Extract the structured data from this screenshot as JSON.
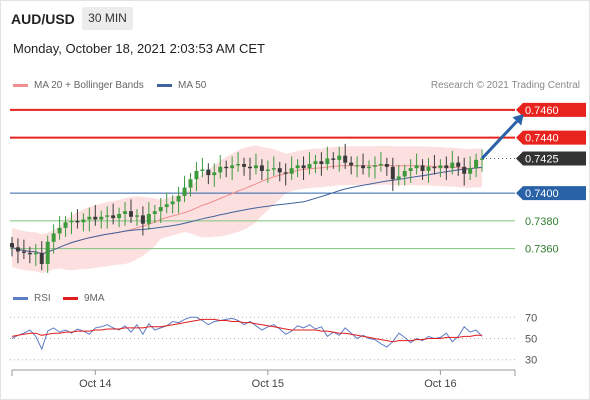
{
  "header": {
    "symbol": "AUD/USD",
    "timeframe": "30 MIN",
    "timestamp": "Monday, October 18, 2021 2:03:53 AM CET",
    "copyright": "Research © 2021 Trading Central"
  },
  "colors": {
    "resistance": "#e8231e",
    "support_strong": "#2a62a8",
    "support": "#7fc47f",
    "price_tag": "#333333",
    "bollinger_fill": "#fbdada",
    "ma20": "#f08d8d",
    "ma50": "#41629c",
    "candle": "#3a3a3a",
    "up_candle": "#3c9a3c",
    "rsi": "#5d7dc7",
    "rsi_ma": "#e11d1d",
    "arrow": "#2a62a8"
  },
  "chart_data": [
    {
      "type": "candlestick",
      "legend": [
        {
          "name": "MA 20 + Bollinger Bands",
          "color": "#f08d8d"
        },
        {
          "name": "MA 50",
          "color": "#41629c"
        }
      ],
      "ylim": [
        0.7336,
        0.747
      ],
      "x_ticks": [
        {
          "label": "Oct 14",
          "index": 14
        },
        {
          "label": "Oct 15",
          "index": 43
        },
        {
          "label": "Oct 16",
          "index": 72
        }
      ],
      "levels": [
        {
          "value": 0.746,
          "label": "0.7460",
          "kind": "resistance"
        },
        {
          "value": 0.744,
          "label": "0.7440",
          "kind": "resistance"
        },
        {
          "value": 0.7425,
          "label": "0.7425",
          "kind": "last_price"
        },
        {
          "value": 0.74,
          "label": "0.7400",
          "kind": "support_strong"
        },
        {
          "value": 0.738,
          "label": "0.7380",
          "kind": "support"
        },
        {
          "value": 0.736,
          "label": "0.7360",
          "kind": "support"
        }
      ],
      "target_arrow": {
        "from": {
          "index": 79,
          "value": 0.7425
        },
        "to": {
          "index": 86,
          "value": 0.7457
        }
      },
      "close_series": [
        0.7361,
        0.7358,
        0.7357,
        0.7356,
        0.7357,
        0.7349,
        0.7365,
        0.7371,
        0.7375,
        0.7379,
        0.738,
        0.7379,
        0.7381,
        0.7383,
        0.7381,
        0.7383,
        0.7384,
        0.7382,
        0.7385,
        0.7387,
        0.7383,
        0.7384,
        0.7378,
        0.7385,
        0.7387,
        0.739,
        0.7392,
        0.7394,
        0.7398,
        0.7404,
        0.741,
        0.7416,
        0.7417,
        0.7413,
        0.7415,
        0.7419,
        0.7418,
        0.742,
        0.7421,
        0.7419,
        0.7418,
        0.742,
        0.7416,
        0.7417,
        0.7418,
        0.7415,
        0.7414,
        0.7418,
        0.742,
        0.7418,
        0.7421,
        0.7423,
        0.7421,
        0.7425,
        0.7424,
        0.7427,
        0.7422,
        0.742,
        0.742,
        0.7418,
        0.7419,
        0.742,
        0.7421,
        0.7419,
        0.741,
        0.7412,
        0.7416,
        0.7418,
        0.742,
        0.7416,
        0.7419,
        0.7418,
        0.742,
        0.7418,
        0.7422,
        0.7419,
        0.7414,
        0.7418,
        0.7424,
        0.7425
      ]
    },
    {
      "type": "line",
      "legend": [
        {
          "name": "RSI",
          "color": "#5d7dc7"
        },
        {
          "name": "9MA",
          "color": "#e11d1d"
        }
      ],
      "ylim": [
        25,
        75
      ],
      "y_ticks": [
        70,
        50,
        30
      ],
      "series": [
        {
          "name": "RSI",
          "values": [
            50,
            53,
            55,
            58,
            52,
            40,
            57,
            60,
            56,
            58,
            55,
            59,
            57,
            54,
            60,
            61,
            63,
            60,
            58,
            62,
            56,
            63,
            54,
            64,
            58,
            60,
            62,
            66,
            65,
            68,
            70,
            70,
            67,
            63,
            66,
            67,
            68,
            69,
            67,
            63,
            66,
            62,
            58,
            61,
            63,
            59,
            54,
            57,
            62,
            60,
            63,
            59,
            61,
            52,
            56,
            53,
            60,
            55,
            50,
            53,
            50,
            49,
            45,
            42,
            47,
            55,
            51,
            46,
            50,
            48,
            52,
            50,
            51,
            55,
            47,
            52,
            61,
            56,
            58,
            52
          ]
        },
        {
          "name": "9MA",
          "values": [
            52,
            53,
            54,
            55,
            55,
            53,
            54,
            55,
            55,
            56,
            56,
            57,
            57,
            57,
            58,
            58,
            59,
            59,
            59,
            60,
            60,
            60,
            60,
            61,
            61,
            61,
            62,
            63,
            64,
            65,
            66,
            67,
            68,
            68,
            68,
            67,
            67,
            66,
            66,
            65,
            65,
            64,
            63,
            62,
            61,
            60,
            59,
            58,
            58,
            58,
            58,
            58,
            57,
            57,
            56,
            55,
            55,
            54,
            53,
            52,
            51,
            50,
            49,
            48,
            47,
            48,
            48,
            48,
            49,
            49,
            50,
            50,
            50,
            51,
            51,
            51,
            52,
            52,
            53,
            53
          ]
        }
      ]
    }
  ]
}
